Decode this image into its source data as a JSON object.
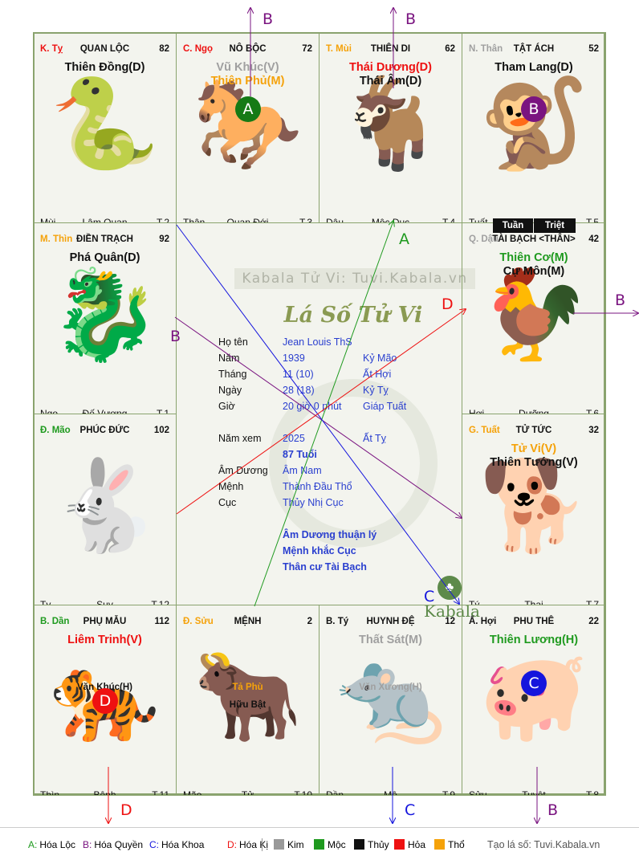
{
  "cells": [
    {
      "id": "ty",
      "can": "K. Tỵ",
      "can_color": "#ee1111",
      "palace": "QUAN LỘC",
      "num": "82",
      "stars": [
        {
          "t": "Thiên Đồng(D)",
          "c": "black"
        }
      ],
      "secondary": [],
      "bottom": {
        "branch": "Mùi",
        "stage": "Lâm Quan",
        "age": "T.2"
      },
      "glyph": "🐍"
    },
    {
      "id": "ngo",
      "can": "C. Ngọ",
      "can_color": "#ee1111",
      "palace": "NÔ BỘC",
      "num": "72",
      "stars": [
        {
          "t": "Vũ Khúc(V)",
          "c": "gray"
        },
        {
          "t": "Thiên Phủ(M)",
          "c": "orange"
        }
      ],
      "secondary": [],
      "bottom": {
        "branch": "Thân",
        "stage": "Quan Đới",
        "age": "T.3"
      },
      "glyph": "🐎"
    },
    {
      "id": "mui",
      "can": "T. Mùi",
      "can_color": "#f5a20a",
      "palace": "THIÊN DI",
      "num": "62",
      "stars": [
        {
          "t": "Thái Dương(D)",
          "c": "red"
        },
        {
          "t": "Thái Âm(D)",
          "c": "black"
        }
      ],
      "secondary": [],
      "bottom": {
        "branch": "Dậu",
        "stage": "Mộc Dục",
        "age": "T.4"
      },
      "glyph": "🐐"
    },
    {
      "id": "than",
      "can": "N. Thân",
      "can_color": "#a0a0a0",
      "palace": "TẬT ÁCH",
      "num": "52",
      "stars": [
        {
          "t": "Tham Lang(D)",
          "c": "black"
        }
      ],
      "secondary": [],
      "bottom": {
        "branch": "Tuất",
        "stage": "Trường Sinh",
        "age": "T.5"
      },
      "glyph": "🐒"
    },
    {
      "id": "thin",
      "can": "M. Thìn",
      "can_color": "#f5a20a",
      "palace": "ĐIỀN TRẠCH",
      "num": "92",
      "stars": [
        {
          "t": "Phá Quân(D)",
          "c": "black"
        }
      ],
      "secondary": [],
      "bottom": {
        "branch": "Ngọ",
        "stage": "Đế Vượng",
        "age": "T.1"
      },
      "glyph": "🐉"
    },
    {
      "id": "dau",
      "can": "Q. Dậu",
      "can_color": "#a0a0a0",
      "palace": "TÀI BẠCH <THÂN>",
      "num": "42",
      "stars": [
        {
          "t": "Thiên Cơ(M)",
          "c": "green"
        },
        {
          "t": "Cự Môn(M)",
          "c": "black"
        }
      ],
      "secondary": [],
      "bottom": {
        "branch": "Hợi",
        "stage": "Dưỡng",
        "age": "T.6"
      },
      "glyph": "🐓"
    },
    {
      "id": "mao",
      "can": "Đ. Mão",
      "can_color": "#1f9a1f",
      "palace": "PHÚC ĐỨC",
      "num": "102",
      "stars": [],
      "secondary": [],
      "bottom": {
        "branch": "Tỵ",
        "stage": "Suy",
        "age": "T.12"
      },
      "glyph": "🐇"
    },
    {
      "id": "tuat",
      "can": "G. Tuất",
      "can_color": "#f5a20a",
      "palace": "TỬ TỨC",
      "num": "32",
      "stars": [
        {
          "t": "Tử Vi(V)",
          "c": "orange"
        },
        {
          "t": "Thiên Tướng(V)",
          "c": "black"
        }
      ],
      "secondary": [],
      "bottom": {
        "branch": "Tý",
        "stage": "Thai",
        "age": "T.7"
      },
      "glyph": "🐕"
    },
    {
      "id": "dan",
      "can": "B. Dần",
      "can_color": "#1f9a1f",
      "palace": "PHỤ MẪU",
      "num": "112",
      "stars": [
        {
          "t": "Liêm Trinh(V)",
          "c": "red"
        }
      ],
      "secondary": [
        {
          "t": "Văn Khúc(H)",
          "c": "black"
        }
      ],
      "bottom": {
        "branch": "Thìn",
        "stage": "Bệnh",
        "age": "T.11"
      },
      "glyph": "🐅"
    },
    {
      "id": "suu",
      "can": "Đ. Sửu",
      "can_color": "#f5a20a",
      "palace": "MỆNH",
      "num": "2",
      "stars": [],
      "secondary": [
        {
          "t": "Tả Phù",
          "c": "orange"
        },
        {
          "t": "Hữu Bật",
          "c": "black"
        }
      ],
      "bottom": {
        "branch": "Mão",
        "stage": "Tử",
        "age": "T.10"
      },
      "glyph": "🐂"
    },
    {
      "id": "ti",
      "can": "B. Tý",
      "can_color": "#111111",
      "palace": "HUYNH ĐỆ",
      "num": "12",
      "stars": [
        {
          "t": "Thất Sát(M)",
          "c": "gray"
        }
      ],
      "secondary": [
        {
          "t": "Văn Xương(H)",
          "c": "gray"
        }
      ],
      "bottom": {
        "branch": "Dần",
        "stage": "Mộ",
        "age": "T.9"
      },
      "glyph": "🐀"
    },
    {
      "id": "hoi",
      "can": "Ấ. Hợi",
      "can_color": "#111111",
      "palace": "PHU THÊ",
      "num": "22",
      "stars": [
        {
          "t": "Thiên Lương(H)",
          "c": "green"
        }
      ],
      "secondary": [],
      "bottom": {
        "branch": "Sửu",
        "stage": "Tuyệt",
        "age": "T.8"
      },
      "glyph": "🐖"
    }
  ],
  "badges": {
    "ngo": {
      "letter": "A",
      "color": "#157a15"
    },
    "than": {
      "letter": "B",
      "color": "#7a1480"
    },
    "dan": {
      "letter": "D",
      "color": "#ee1111"
    },
    "hoi": {
      "letter": "C",
      "color": "#1515dd"
    }
  },
  "tuan_triet": [
    "Tuần",
    "Triệt"
  ],
  "center": {
    "watermark_text": "Kabala Tử Vi: Tuvi.Kabala.vn",
    "title": "Lá Số Tử Vi",
    "rows": [
      {
        "label": "Họ tên",
        "v1": "Jean Louis ThS",
        "v2": ""
      },
      {
        "label": "Năm",
        "v1": "1939",
        "v2": "Kỷ Mão"
      },
      {
        "label": "Tháng",
        "v1": "11 (10)",
        "v2": "Ất Hợi"
      },
      {
        "label": "Ngày",
        "v1": "28  (18)",
        "v2": "Kỷ Tỵ"
      },
      {
        "label": "Giờ",
        "v1": "20 giờ 0 phút",
        "v2": "Giáp Tuất"
      },
      {
        "label": "Năm xem",
        "v1": "2025",
        "v2": "Ất Tỵ"
      },
      {
        "label": "",
        "v1": "87 Tuổi",
        "v2": ""
      },
      {
        "label": "Âm Dương",
        "v1": "Âm Nam",
        "v2": ""
      },
      {
        "label": "Mệnh",
        "v1": "Thành Đầu Thổ",
        "v2": ""
      },
      {
        "label": "Cục",
        "v1": "Thủy Nhị Cục",
        "v2": ""
      }
    ],
    "notes": [
      "Âm Dương thuận lý",
      "Mệnh khắc Cục",
      "Thân cư Tài Bạch"
    ],
    "logo_text": "Kabala"
  },
  "line_labels": {
    "a": "A",
    "b": "B",
    "c": "C",
    "d": "D"
  },
  "arrow_labels": {
    "top1": "B",
    "top2": "B",
    "right": "B",
    "bottom1": "D",
    "bottom2": "C",
    "bottom3": "B"
  },
  "legend": {
    "transforms": [
      {
        "k": "A:",
        "v": "Hóa Lộc",
        "color": "#1f9a1f"
      },
      {
        "k": "B:",
        "v": "Hóa Quyền",
        "color": "#7a1480"
      },
      {
        "k": "C:",
        "v": "Hóa Khoa",
        "color": "#1515dd"
      },
      {
        "k": "D:",
        "v": "Hóa Kị",
        "color": "#ee1111"
      }
    ],
    "elements": [
      {
        "name": "Kim",
        "color": "#999999"
      },
      {
        "name": "Mộc",
        "color": "#1f9a1f"
      },
      {
        "name": "Thủy",
        "color": "#111111"
      },
      {
        "name": "Hỏa",
        "color": "#ee1111"
      },
      {
        "name": "Thổ",
        "color": "#f5a20a"
      }
    ],
    "site": "Tạo lá số: Tuvi.Kabala.vn"
  }
}
